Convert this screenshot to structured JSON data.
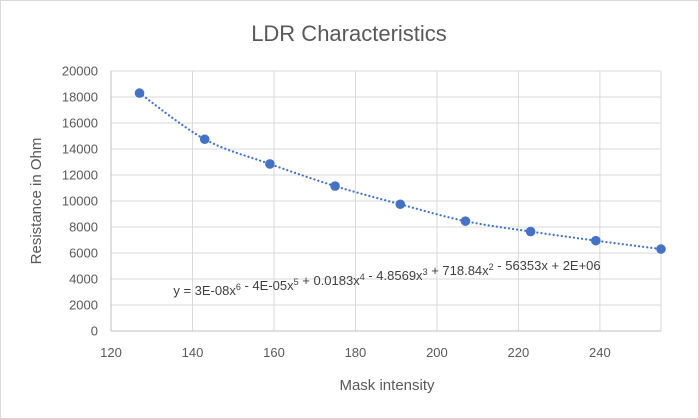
{
  "chart_data": {
    "type": "scatter",
    "title": "LDR Characteristics",
    "xlabel": "Mask intensity",
    "ylabel": "Resistance in Ohm",
    "xlim": [
      120,
      255
    ],
    "ylim": [
      0,
      20000
    ],
    "x_ticks": [
      "120",
      "140",
      "160",
      "180",
      "200",
      "220",
      "240"
    ],
    "y_ticks": [
      "0",
      "2000",
      "4000",
      "6000",
      "8000",
      "10000",
      "12000",
      "14000",
      "16000",
      "18000",
      "20000"
    ],
    "grid": true,
    "legend": "none",
    "series": [
      {
        "color": "#4472c4",
        "points": [
          {
            "x": 127,
            "y": 18300
          },
          {
            "x": 143,
            "y": 14750
          },
          {
            "x": 159,
            "y": 12850
          },
          {
            "x": 175,
            "y": 11150
          },
          {
            "x": 191,
            "y": 9750
          },
          {
            "x": 207,
            "y": 8450
          },
          {
            "x": 223,
            "y": 7650
          },
          {
            "x": 239,
            "y": 6950
          },
          {
            "x": 255,
            "y": 6300
          }
        ]
      }
    ],
    "trendline": {
      "type": "polynomial",
      "order": 6,
      "style": "dotted",
      "color": "#4472c4",
      "equation_parts": [
        {
          "t": "y = 3E-08x"
        },
        {
          "s": "6"
        },
        {
          "t": " - 4E-05x"
        },
        {
          "s": "5"
        },
        {
          "t": " + 0.0183x"
        },
        {
          "s": "4"
        },
        {
          "t": " - 4.8569x"
        },
        {
          "s": "3"
        },
        {
          "t": " + 718.84x"
        },
        {
          "s": "2"
        },
        {
          "t": " - 56353x + 2E+06"
        }
      ]
    }
  }
}
